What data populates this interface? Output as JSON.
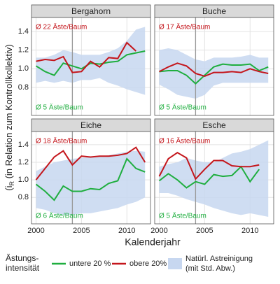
{
  "chart_data": [
    {
      "type": "line",
      "title": "Bergahorn",
      "x": [
        2000,
        2001,
        2002,
        2003,
        2004,
        2005,
        2006,
        2007,
        2008,
        2009,
        2010,
        2011,
        2012
      ],
      "series": [
        {
          "name": "untere 20 %",
          "color": "#1fae3f",
          "values": [
            1.03,
            0.97,
            0.93,
            1.06,
            1.03,
            1.0,
            1.06,
            1.05,
            1.07,
            1.08,
            1.15,
            1.17,
            1.19
          ]
        },
        {
          "name": "obere 20%",
          "color": "#c4161c",
          "values": [
            1.08,
            1.1,
            1.09,
            1.13,
            0.96,
            0.97,
            1.08,
            1.02,
            1.12,
            1.11,
            1.28,
            1.19,
            null
          ]
        }
      ],
      "band": {
        "name": "Natürl. Astreinigung",
        "color": "#c7d7f0",
        "lower": [
          0.85,
          0.87,
          0.85,
          0.87,
          0.85,
          0.88,
          0.88,
          0.9,
          0.85,
          0.82,
          0.78,
          0.75,
          0.72
        ],
        "upper": [
          1.12,
          1.12,
          1.15,
          1.2,
          1.18,
          1.15,
          1.15,
          1.15,
          1.18,
          1.22,
          1.3,
          1.42,
          1.45
        ]
      },
      "annotations": [
        {
          "text": "Ø 22 Äste/Baum",
          "color": "#c4161c"
        },
        {
          "text": "Ø 5 Äste/Baum",
          "color": "#1fae3f"
        }
      ],
      "reference_x": 2004,
      "xlim": [
        1999.5,
        2012.6
      ],
      "xticks": [
        2000,
        2005,
        2010
      ],
      "ylim": [
        0.5,
        1.55
      ],
      "yticks": [
        0.8,
        {
          "value": 1,
          "label": "1.0"
        },
        1.2,
        1.4
      ],
      "grid": true
    },
    {
      "type": "line",
      "title": "Buche",
      "x": [
        2000,
        2001,
        2002,
        2003,
        2004,
        2005,
        2006,
        2007,
        2008,
        2009,
        2010,
        2011,
        2012
      ],
      "series": [
        {
          "name": "untere 20 %",
          "color": "#1fae3f",
          "values": [
            0.97,
            0.98,
            0.98,
            0.93,
            0.84,
            0.93,
            1.02,
            1.05,
            1.04,
            1.04,
            1.05,
            0.98,
            1.02
          ]
        },
        {
          "name": "obere 20%",
          "color": "#c4161c",
          "values": [
            0.97,
            1.02,
            1.06,
            1.03,
            0.95,
            0.92,
            0.96,
            0.96,
            0.97,
            0.96,
            1.0,
            0.97,
            0.95
          ]
        }
      ],
      "band": {
        "name": "Natürl. Astreinigung",
        "color": "#c7d7f0",
        "lower": [
          0.83,
          0.78,
          0.72,
          0.7,
          0.68,
          0.72,
          0.82,
          0.85,
          0.85,
          0.85,
          0.85,
          0.85,
          0.85
        ],
        "upper": [
          1.2,
          1.22,
          1.2,
          1.15,
          1.1,
          1.08,
          1.12,
          1.12,
          1.12,
          1.13,
          1.15,
          1.12,
          1.12
        ]
      },
      "annotations": [
        {
          "text": "Ø 17 Äste/Baum",
          "color": "#c4161c"
        },
        {
          "text": "Ø 5 Äste/Baum",
          "color": "#1fae3f"
        }
      ],
      "reference_x": 2004,
      "xlim": [
        1999.5,
        2012.6
      ],
      "xticks": [
        2000,
        2005,
        2010
      ],
      "ylim": [
        0.5,
        1.55
      ],
      "yticks": [
        0.8,
        {
          "value": 1,
          "label": "1.0"
        },
        1.2,
        1.4
      ],
      "grid": true
    },
    {
      "type": "line",
      "title": "Eiche",
      "x": [
        2000,
        2001,
        2002,
        2003,
        2004,
        2005,
        2006,
        2007,
        2008,
        2009,
        2010,
        2011,
        2012
      ],
      "series": [
        {
          "name": "untere 20 %",
          "color": "#1fae3f",
          "values": [
            0.95,
            0.87,
            0.77,
            0.93,
            0.87,
            0.87,
            0.9,
            0.89,
            0.96,
            0.99,
            1.24,
            1.13,
            1.09
          ]
        },
        {
          "name": "obere 20%",
          "color": "#c4161c",
          "values": [
            1.0,
            1.13,
            1.26,
            1.33,
            1.17,
            1.27,
            1.26,
            1.27,
            1.27,
            1.28,
            1.3,
            1.37,
            1.2
          ]
        }
      ],
      "band": {
        "name": "Natürl. Astreinigung",
        "color": "#c7d7f0",
        "lower": [
          0.68,
          0.66,
          0.62,
          0.6,
          0.6,
          0.62,
          0.62,
          0.64,
          0.66,
          0.68,
          0.72,
          0.75,
          0.8
        ],
        "upper": [
          1.1,
          1.15,
          1.2,
          1.22,
          1.24,
          1.25,
          1.26,
          1.27,
          1.28,
          1.3,
          1.32,
          1.33,
          1.32
        ]
      },
      "annotations": [
        {
          "text": "Ø 18 Äste/Baum",
          "color": "#c4161c"
        },
        {
          "text": "Ø 6 Äste/Baum",
          "color": "#1fae3f"
        }
      ],
      "reference_x": 2004,
      "xlim": [
        1999.5,
        2012.6
      ],
      "xticks": [
        2000,
        2005,
        2010
      ],
      "ylim": [
        0.5,
        1.55
      ],
      "yticks": [
        0.8,
        {
          "value": 1,
          "label": "1.0"
        },
        1.2,
        1.4
      ],
      "grid": true
    },
    {
      "type": "line",
      "title": "Esche",
      "x": [
        2000,
        2001,
        2002,
        2003,
        2004,
        2005,
        2006,
        2007,
        2008,
        2009,
        2010,
        2011,
        2012
      ],
      "series": [
        {
          "name": "untere 20 %",
          "color": "#1fae3f",
          "values": [
            0.99,
            1.07,
            1.0,
            0.91,
            0.98,
            0.95,
            1.06,
            1.04,
            1.05,
            1.15,
            0.98,
            1.12,
            null
          ]
        },
        {
          "name": "obere 20%",
          "color": "#c4161c",
          "values": [
            1.04,
            1.24,
            1.31,
            1.25,
            1.01,
            1.12,
            1.22,
            1.22,
            1.16,
            1.15,
            1.15,
            1.17,
            null
          ]
        }
      ],
      "band": {
        "name": "Natürl. Astreinigung",
        "color": "#c7d7f0",
        "lower": [
          0.85,
          0.85,
          0.82,
          0.78,
          0.75,
          0.72,
          0.68,
          0.65,
          0.62,
          0.6,
          0.62,
          0.6,
          0.58
        ],
        "upper": [
          1.15,
          1.18,
          1.2,
          1.25,
          1.22,
          1.2,
          1.2,
          1.25,
          1.3,
          1.32,
          1.35,
          1.4,
          1.45
        ]
      },
      "annotations": [
        {
          "text": "Ø 16 Äste/Baum",
          "color": "#c4161c"
        },
        {
          "text": "Ø 5 Äste/Baum",
          "color": "#1fae3f"
        }
      ],
      "reference_x": 2004,
      "xlim": [
        1999.5,
        2012.6
      ],
      "xticks": [
        2000,
        2005,
        2010
      ],
      "ylim": [
        0.5,
        1.55
      ],
      "yticks": [
        0.8,
        {
          "value": 1,
          "label": "1.0"
        },
        1.2,
        1.4
      ],
      "grid": true
    }
  ],
  "y_label": [
    "(i",
    "R",
    " (in Relation zum Kontrollkollektiv)"
  ],
  "x_label": "Kalenderjahr",
  "legend": {
    "title": [
      "Ästungs-",
      "intensität"
    ],
    "series": [
      "untere 20 %",
      "obere 20%"
    ],
    "band": [
      "Natürl. Astreinigung",
      "(mit Std. Abw.)"
    ]
  }
}
